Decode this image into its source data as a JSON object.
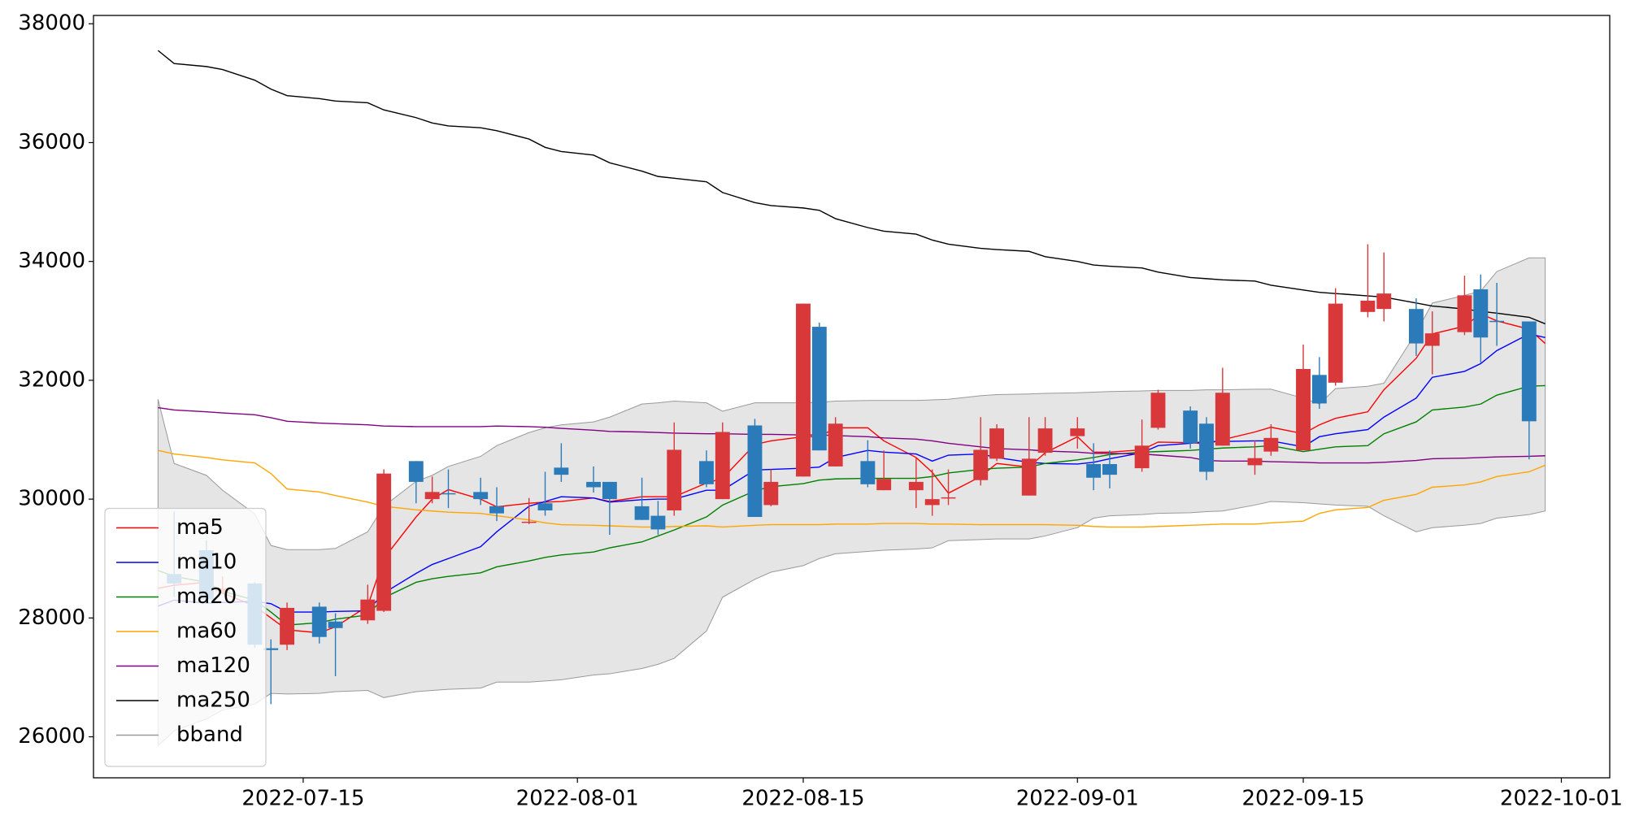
{
  "chart_data": {
    "type": "candlestick",
    "x": [
      "2022-07-06",
      "2022-07-07",
      "2022-07-09",
      "2022-07-10",
      "2022-07-12",
      "2022-07-13",
      "2022-07-14",
      "2022-07-16",
      "2022-07-17",
      "2022-07-19",
      "2022-07-20",
      "2022-07-22",
      "2022-07-23",
      "2022-07-24",
      "2022-07-26",
      "2022-07-27",
      "2022-07-29",
      "2022-07-30",
      "2022-07-31",
      "2022-08-02",
      "2022-08-03",
      "2022-08-05",
      "2022-08-06",
      "2022-08-07",
      "2022-08-09",
      "2022-08-10",
      "2022-08-12",
      "2022-08-13",
      "2022-08-15",
      "2022-08-16",
      "2022-08-17",
      "2022-08-19",
      "2022-08-20",
      "2022-08-22",
      "2022-08-23",
      "2022-08-24",
      "2022-08-26",
      "2022-08-27",
      "2022-08-29",
      "2022-08-30",
      "2022-09-01",
      "2022-09-02",
      "2022-09-03",
      "2022-09-05",
      "2022-09-06",
      "2022-09-08",
      "2022-09-09",
      "2022-09-10",
      "2022-09-12",
      "2022-09-13",
      "2022-09-15",
      "2022-09-16",
      "2022-09-17",
      "2022-09-19",
      "2022-09-20",
      "2022-09-22",
      "2022-09-23",
      "2022-09-25",
      "2022-09-26",
      "2022-09-27",
      "2022-09-29",
      "2022-09-30"
    ],
    "candles": {
      "up_color": "#d8383a",
      "down_color": "#2b7bba",
      "open": [
        null,
        28740,
        29140,
        28450,
        28580,
        27490,
        27550,
        28190,
        27940,
        27960,
        28120,
        30640,
        30000,
        30100,
        30120,
        29880,
        29600,
        29930,
        30530,
        30290,
        30290,
        29880,
        29720,
        29810,
        30640,
        30000,
        31240,
        29900,
        30380,
        32900,
        30550,
        30640,
        30150,
        30150,
        29900,
        30010,
        30320,
        30680,
        30060,
        30780,
        31060,
        30590,
        30590,
        30520,
        31200,
        31490,
        31270,
        30900,
        30570,
        30800,
        30820,
        32090,
        31960,
        33150,
        33200,
        33200,
        32580,
        32810,
        33530,
        33000,
        32990,
        null
      ],
      "high": [
        null,
        29790,
        29310,
        28700,
        28600,
        27640,
        28260,
        28260,
        28080,
        28560,
        30500,
        30640,
        30380,
        30500,
        30360,
        30200,
        30020,
        30460,
        30940,
        30550,
        30290,
        30360,
        29970,
        31290,
        30820,
        31290,
        31350,
        30500,
        33290,
        32970,
        31380,
        30990,
        30820,
        30690,
        30500,
        30500,
        31380,
        31260,
        31380,
        31380,
        31380,
        30940,
        30820,
        31340,
        31840,
        31560,
        31380,
        32210,
        30990,
        31260,
        32600,
        32390,
        33550,
        34290,
        34150,
        33380,
        33160,
        33760,
        33780,
        33640,
        32990,
        null
      ],
      "low": [
        null,
        28350,
        28260,
        28400,
        27500,
        26550,
        27460,
        27570,
        27020,
        27900,
        28100,
        29930,
        29930,
        29850,
        29900,
        29630,
        29580,
        29720,
        30290,
        30110,
        29400,
        29650,
        29400,
        29720,
        30200,
        30000,
        29700,
        29880,
        30380,
        30820,
        30550,
        30200,
        30150,
        29850,
        29720,
        29900,
        30230,
        30640,
        30060,
        30730,
        30850,
        30150,
        30180,
        30460,
        31170,
        30850,
        30320,
        30900,
        30410,
        30730,
        30820,
        31520,
        31910,
        33060,
        32990,
        32410,
        32100,
        32760,
        32300,
        32580,
        30670,
        null
      ],
      "close": [
        null,
        28580,
        28310,
        28500,
        27550,
        27460,
        28170,
        27680,
        27830,
        28310,
        30430,
        30290,
        30120,
        30080,
        30000,
        29760,
        29620,
        29810,
        30410,
        30200,
        30000,
        29650,
        29490,
        30830,
        30250,
        31130,
        29700,
        30290,
        33290,
        30820,
        31270,
        30250,
        30340,
        30290,
        30000,
        30030,
        30830,
        31190,
        30680,
        31190,
        31190,
        30360,
        30410,
        30900,
        31790,
        30940,
        30460,
        31790,
        30690,
        31030,
        32190,
        31610,
        33290,
        33340,
        33460,
        32620,
        32790,
        33430,
        32720,
        32980,
        31310,
        null
      ]
    },
    "series": [
      {
        "name": "ma5",
        "color": "#ff0000",
        "values": [
          28500,
          28550,
          28600,
          28420,
          28200,
          28000,
          27800,
          27750,
          27850,
          28200,
          29000,
          29700,
          30000,
          30160,
          30000,
          29870,
          29930,
          29950,
          29960,
          30020,
          29960,
          30040,
          30040,
          30040,
          30270,
          30350,
          30920,
          30980,
          31050,
          31050,
          31200,
          31200,
          30980,
          30700,
          30450,
          30100,
          30380,
          30600,
          30540,
          30780,
          31050,
          30790,
          30790,
          30830,
          30960,
          30950,
          30930,
          31000,
          31130,
          31210,
          31100,
          31250,
          31360,
          31470,
          31840,
          32370,
          32780,
          32910,
          33120,
          33000,
          32860,
          32620
        ]
      },
      {
        "name": "ma10",
        "color": "#0000ff",
        "values": [
          28200,
          28300,
          28250,
          28260,
          28280,
          28240,
          28100,
          28100,
          28110,
          28120,
          28420,
          28750,
          28900,
          29000,
          29200,
          29450,
          29880,
          29960,
          30040,
          30020,
          29950,
          29990,
          30000,
          30000,
          30150,
          30150,
          30490,
          30500,
          30520,
          30540,
          30700,
          30820,
          30790,
          30760,
          30640,
          30740,
          30760,
          30700,
          30620,
          30600,
          30590,
          30620,
          30680,
          30780,
          30900,
          30940,
          30970,
          30970,
          30980,
          30980,
          30880,
          31050,
          31100,
          31170,
          31380,
          31700,
          32050,
          32150,
          32280,
          32500,
          32780,
          32720
        ]
      },
      {
        "name": "ma20",
        "color": "#008000",
        "values": [
          28800,
          28700,
          28600,
          28450,
          28300,
          28100,
          27880,
          27920,
          27980,
          28050,
          28340,
          28600,
          28660,
          28700,
          28760,
          28860,
          28960,
          29020,
          29060,
          29110,
          29180,
          29280,
          29380,
          29480,
          29700,
          29900,
          30140,
          30210,
          30260,
          30320,
          30340,
          30350,
          30350,
          30350,
          30380,
          30440,
          30500,
          30520,
          30540,
          30600,
          30660,
          30700,
          30750,
          30790,
          30800,
          30820,
          30840,
          30860,
          30880,
          30900,
          30800,
          30840,
          30880,
          30900,
          31100,
          31300,
          31500,
          31550,
          31600,
          31750,
          31900,
          31910
        ]
      },
      {
        "name": "ma60",
        "color": "#ffa500",
        "values": [
          30820,
          30760,
          30700,
          30660,
          30610,
          30430,
          30170,
          30120,
          30060,
          29950,
          29880,
          29820,
          29800,
          29780,
          29760,
          29720,
          29650,
          29600,
          29570,
          29560,
          29550,
          29530,
          29530,
          29540,
          29550,
          29530,
          29560,
          29570,
          29570,
          29570,
          29580,
          29580,
          29590,
          29590,
          29580,
          29580,
          29570,
          29570,
          29570,
          29570,
          29560,
          29540,
          29530,
          29530,
          29540,
          29560,
          29570,
          29580,
          29580,
          29600,
          29630,
          29760,
          29820,
          29860,
          29980,
          30080,
          30200,
          30240,
          30290,
          30380,
          30460,
          30570
        ]
      },
      {
        "name": "ma120",
        "color": "#800080",
        "values": [
          31540,
          31500,
          31470,
          31450,
          31420,
          31370,
          31310,
          31280,
          31270,
          31250,
          31230,
          31220,
          31220,
          31220,
          31220,
          31230,
          31220,
          31210,
          31190,
          31160,
          31140,
          31130,
          31120,
          31110,
          31100,
          31100,
          31090,
          31090,
          31080,
          31080,
          31070,
          31050,
          31030,
          31010,
          30980,
          30940,
          30880,
          30850,
          30830,
          30810,
          30790,
          30770,
          30770,
          30760,
          30740,
          30700,
          30650,
          30640,
          30640,
          30630,
          30620,
          30610,
          30610,
          30610,
          30620,
          30650,
          30680,
          30690,
          30700,
          30710,
          30720,
          30730
        ]
      },
      {
        "name": "ma250",
        "color": "#000000",
        "values": [
          37550,
          37330,
          37280,
          37230,
          37050,
          36900,
          36790,
          36740,
          36700,
          36670,
          36550,
          36420,
          36330,
          36280,
          36250,
          36200,
          36060,
          35920,
          35850,
          35790,
          35660,
          35520,
          35430,
          35400,
          35340,
          35160,
          34990,
          34940,
          34900,
          34860,
          34720,
          34570,
          34510,
          34460,
          34360,
          34290,
          34220,
          34200,
          34170,
          34080,
          34000,
          33940,
          33920,
          33890,
          33820,
          33730,
          33710,
          33690,
          33670,
          33600,
          33520,
          33480,
          33460,
          33420,
          33400,
          33300,
          33250,
          33200,
          33160,
          33130,
          33060,
          32950
        ]
      }
    ],
    "band": {
      "name": "bband",
      "color": "#999999",
      "fill": "#e5e5e5",
      "upper": [
        31680,
        30600,
        30400,
        30150,
        29750,
        29220,
        29150,
        29150,
        29170,
        29450,
        29880,
        30300,
        30400,
        30550,
        30720,
        30900,
        31120,
        31200,
        31250,
        31300,
        31380,
        31600,
        31620,
        31650,
        31620,
        31480,
        31620,
        31620,
        31620,
        31630,
        31650,
        31660,
        31660,
        31660,
        31670,
        31680,
        31740,
        31760,
        31770,
        31780,
        31790,
        31800,
        31810,
        31820,
        31830,
        31830,
        31840,
        31840,
        31850,
        31850,
        31700,
        31600,
        31860,
        31900,
        31950,
        32800,
        33300,
        33430,
        33500,
        33830,
        34060,
        34060
      ],
      "lower": [
        25850,
        26100,
        26300,
        26450,
        26550,
        26730,
        26720,
        26730,
        26760,
        26780,
        26660,
        26760,
        26780,
        26800,
        26820,
        26920,
        26920,
        26940,
        26960,
        27040,
        27060,
        27150,
        27220,
        27320,
        27780,
        28350,
        28650,
        28770,
        28880,
        29000,
        29080,
        29120,
        29140,
        29160,
        29180,
        29300,
        29320,
        29330,
        29330,
        29380,
        29520,
        29680,
        29720,
        29740,
        29760,
        29770,
        29790,
        29800,
        29900,
        29960,
        29940,
        29920,
        29900,
        29880,
        29720,
        29450,
        29520,
        29560,
        29590,
        29680,
        29740,
        29800
      ]
    },
    "xlim": [
      "2022-07-02",
      "2022-10-04"
    ],
    "xticks": [
      "2022-07-15",
      "2022-08-01",
      "2022-08-15",
      "2022-09-01",
      "2022-09-15",
      "2022-10-01"
    ],
    "ylim": [
      25310,
      38140
    ],
    "yticks": [
      26000,
      28000,
      30000,
      32000,
      34000,
      36000,
      38000
    ],
    "legend": "lower left"
  }
}
